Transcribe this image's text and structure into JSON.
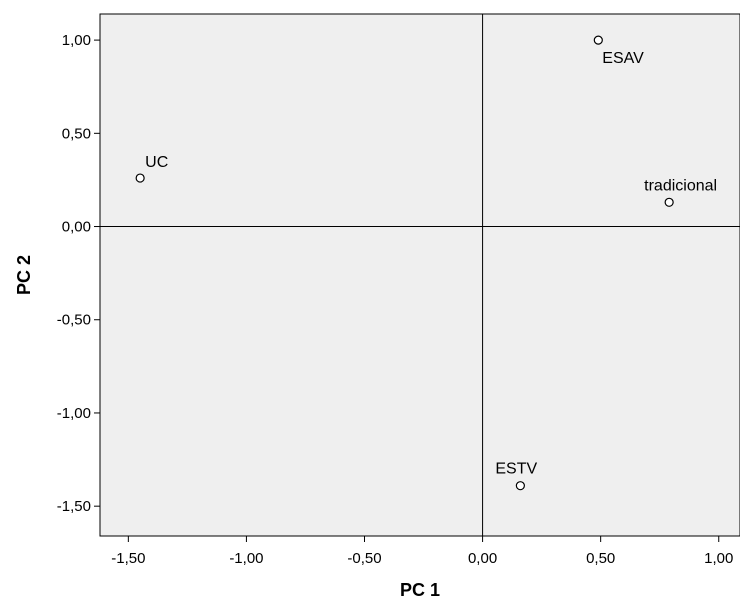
{
  "chart_data": {
    "type": "scatter",
    "title": "",
    "xlabel": "PC 1",
    "ylabel": "PC 2",
    "xlim": [
      -1.62,
      1.09
    ],
    "ylim": [
      -1.66,
      1.14
    ],
    "x_ticks": [
      -1.5,
      -1.0,
      -0.5,
      0.0,
      0.5,
      1.0
    ],
    "x_tick_labels": [
      "-1,50",
      "-1,00",
      "-0,50",
      "0,00",
      "0,50",
      "1,00"
    ],
    "y_ticks": [
      1.0,
      0.5,
      0.0,
      -0.5,
      -1.0,
      -1.5
    ],
    "y_tick_labels": [
      "1,00",
      "0,50",
      "0,00",
      "-0,50",
      "-1,00",
      "-1,50"
    ],
    "reference_lines": {
      "x": 0,
      "y": 0
    },
    "grid": false,
    "plot_background": "#efefef",
    "points": [
      {
        "label": "ESAV",
        "x": 0.49,
        "y": 1.0,
        "label_pos": "below-right"
      },
      {
        "label": "UC",
        "x": -1.45,
        "y": 0.26,
        "label_pos": "above-right"
      },
      {
        "label": "tradicional",
        "x": 0.79,
        "y": 0.13,
        "label_pos": "above-left"
      },
      {
        "label": "ESTV",
        "x": 0.16,
        "y": -1.39,
        "label_pos": "above-left"
      }
    ]
  }
}
